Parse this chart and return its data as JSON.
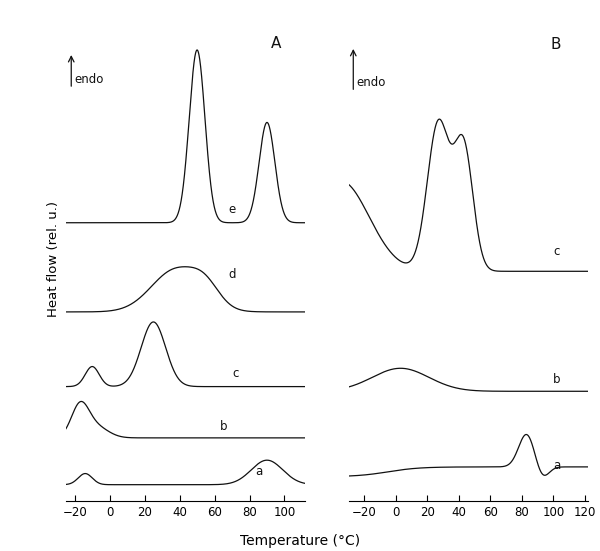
{
  "panel_A_xlim": [
    -25,
    112
  ],
  "panel_B_xlim": [
    -30,
    122
  ],
  "panel_A_xticks": [
    -20,
    0,
    20,
    40,
    60,
    80,
    100
  ],
  "panel_B_xticks": [
    -20,
    0,
    20,
    40,
    60,
    80,
    100,
    120
  ],
  "xlabel": "Temperature (°C)",
  "ylabel": "Heat flow (rel. u.)",
  "panel_A_label": "A",
  "panel_B_label": "B",
  "endo_label": "endo",
  "background_color": "#ffffff",
  "line_color": "#111111"
}
